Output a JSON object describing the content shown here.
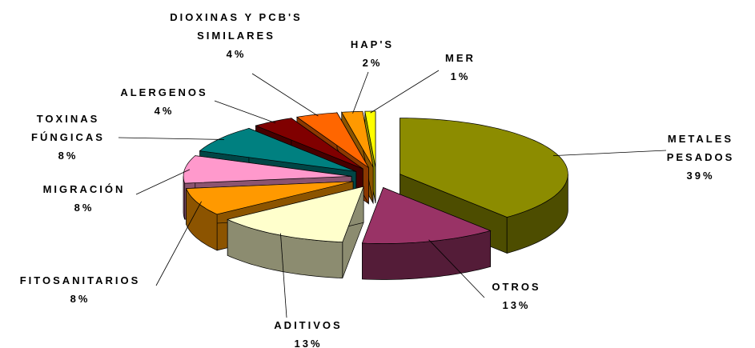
{
  "chart_data": {
    "type": "pie",
    "categories": [
      "METALES PESADOS",
      "OTROS",
      "ADITIVOS",
      "FITOSANITARIOS",
      "MIGRACIÓN",
      "TOXINAS FÚNGICAS",
      "ALERGENOS",
      "DIOXINAS Y PCB'S SIMILARES",
      "HAP'S",
      "MER"
    ],
    "values": [
      39,
      13,
      13,
      8,
      8,
      8,
      4,
      4,
      2,
      1
    ],
    "value_labels": [
      "39%",
      "13%",
      "13%",
      "8%",
      "8%",
      "8%",
      "4%",
      "4%",
      "2%",
      "1%"
    ],
    "colors": [
      "#8c8c00",
      "#993366",
      "#ffffcc",
      "#ff9900",
      "#ff99cc",
      "#008080",
      "#800000",
      "#ff6600",
      "#ff9900",
      "#ffff00"
    ]
  }
}
